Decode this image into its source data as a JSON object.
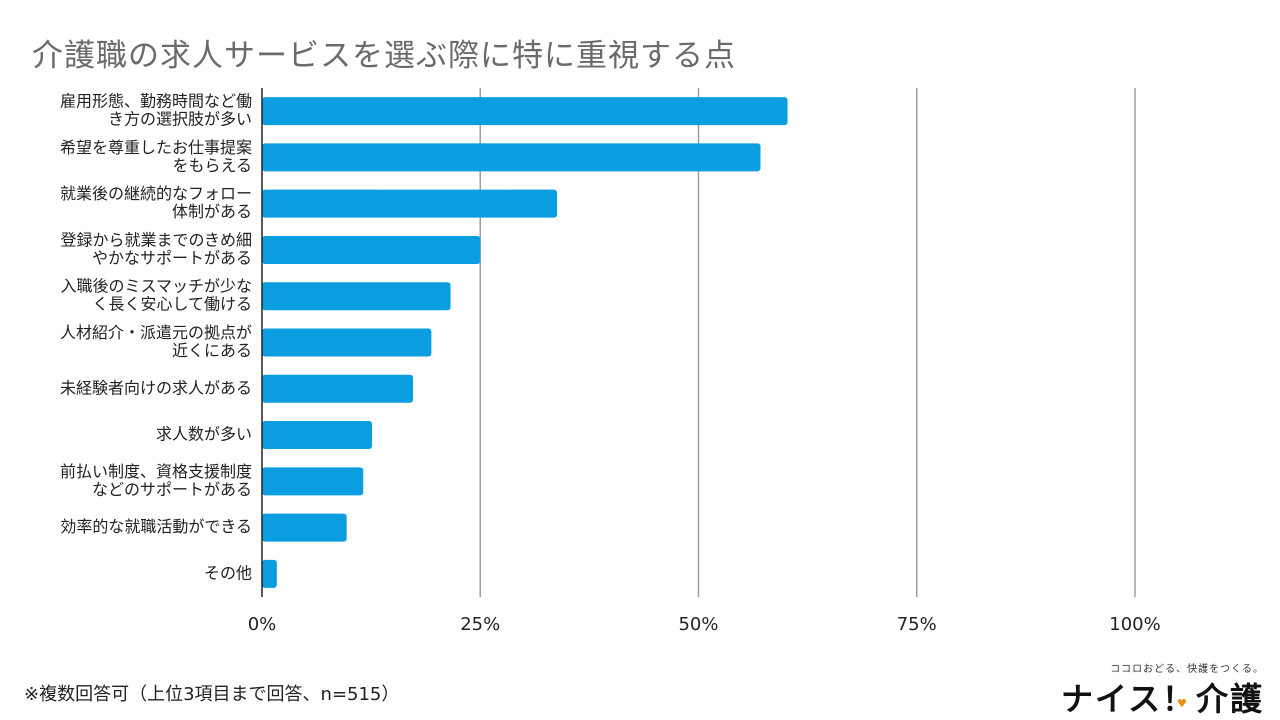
{
  "chart_data": {
    "type": "bar",
    "orientation": "horizontal",
    "title": "介護職の求人サービスを選ぶ際に特に重視する点",
    "categories": [
      [
        "雇用形態、勤務時間など働",
        "き方の選択肢が多い"
      ],
      [
        "希望を尊重したお仕事提案",
        "をもらえる"
      ],
      [
        "就業後の継続的なフォロー",
        "体制がある"
      ],
      [
        "登録から就業までのきめ細",
        "やかなサポートがある"
      ],
      [
        "入職後のミスマッチが少な",
        "く長く安心して働ける"
      ],
      [
        "人材紹介・派遣元の拠点が",
        "近くにある"
      ],
      [
        "未経験者向けの求人がある"
      ],
      [
        "求人数が多い"
      ],
      [
        "前払い制度、資格支援制度",
        "などのサポートがある"
      ],
      [
        "効率的な就職活動ができる"
      ],
      [
        "その他"
      ]
    ],
    "values": [
      60.2,
      57.1,
      33.8,
      25.0,
      21.6,
      19.4,
      17.3,
      12.6,
      11.6,
      9.7,
      1.7
    ],
    "xlim": [
      0,
      100
    ],
    "xticks": [
      0,
      25,
      50,
      75,
      100
    ],
    "xtick_labels": [
      "0%",
      "25%",
      "50%",
      "75%",
      "100%"
    ],
    "xlabel": "",
    "ylabel": "",
    "grid": true,
    "bar_color": "#0a9ee0",
    "grid_color": "#9e9e9e"
  },
  "footnote": "※複数回答可（上位3項目まで回答、n=515）",
  "logo": {
    "tagline": "ココロおどる、快護をつくる。",
    "name": "ナイス！介護",
    "heart_icon": "heart-icon"
  }
}
